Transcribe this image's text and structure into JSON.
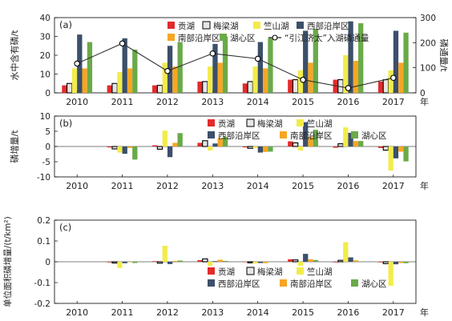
{
  "years": [
    "2010",
    "2011",
    "2012",
    "2013",
    "2014",
    "2015",
    "2016",
    "2017"
  ],
  "year_unit": "年",
  "series_colors": {
    "贡湖": "#e32b2b",
    "梅梁湖": "#e6e6e6",
    "竺山湖": "#f2ec4b",
    "西部沿岸区": "#3c4f6b",
    "南部沿岸区": "#f6a623",
    "湖心区": "#6aaa49",
    "引江济太": "#333333"
  },
  "chart_data": [
    {
      "type": "bar",
      "panel": "(a)",
      "ylabel": "水中含有磷/t",
      "ylabel_right": "磷通量/t",
      "ylim": [
        0,
        40
      ],
      "yticks": [
        0,
        10,
        20,
        30,
        40
      ],
      "ylim_right": [
        0,
        300
      ],
      "yticks_right": [
        0,
        100,
        200,
        300
      ],
      "categories": [
        "2010",
        "2011",
        "2012",
        "2013",
        "2014",
        "2015",
        "2016",
        "2017"
      ],
      "series": [
        {
          "name": "贡湖",
          "values": [
            4,
            4,
            4,
            6,
            5,
            7,
            7,
            6
          ]
        },
        {
          "name": "梅梁湖",
          "values": [
            5,
            5,
            4,
            6,
            6,
            7,
            7,
            7
          ]
        },
        {
          "name": "竺山湖",
          "values": [
            13,
            11,
            16,
            14,
            14,
            12,
            20,
            12
          ]
        },
        {
          "name": "西部沿岸区",
          "values": [
            31,
            29,
            25,
            26,
            27,
            33,
            38,
            33
          ]
        },
        {
          "name": "南部沿岸区",
          "values": [
            13,
            13,
            14,
            16,
            13,
            16,
            17,
            16
          ]
        },
        {
          "name": "湖心区",
          "values": [
            27,
            23,
            27,
            30,
            29,
            34,
            37,
            32
          ]
        }
      ],
      "line": {
        "name": "“引江济太”入湖磷通量",
        "values": [
          117,
          197,
          87,
          157,
          136,
          52,
          19,
          60
        ]
      }
    },
    {
      "type": "bar",
      "panel": "(b)",
      "ylabel": "磷增量/t",
      "ylim": [
        -10,
        10
      ],
      "yticks": [
        -10,
        -5,
        0,
        5,
        10
      ],
      "categories": [
        "2010",
        "2011",
        "2012",
        "2013",
        "2014",
        "2015",
        "2016",
        "2017"
      ],
      "series": [
        {
          "name": "贡湖",
          "values": [
            0,
            -0.3,
            0.4,
            1.2,
            -0.3,
            1.7,
            -0.4,
            -0.5
          ]
        },
        {
          "name": "梅梁湖",
          "values": [
            0,
            -0.8,
            -0.9,
            1.9,
            -0.6,
            1.2,
            0.9,
            -1.2
          ]
        },
        {
          "name": "竺山湖",
          "values": [
            0,
            -2.0,
            5.2,
            -1.3,
            -0.5,
            -1.3,
            6.3,
            -7.9
          ]
        },
        {
          "name": "西部沿岸区",
          "values": [
            0,
            -2.4,
            -3.5,
            1.0,
            -2.0,
            8.0,
            4.5,
            -3.9
          ]
        },
        {
          "name": "南部沿岸区",
          "values": [
            0,
            -0.5,
            1.2,
            2.7,
            -1.8,
            3.2,
            1.8,
            -1.7
          ]
        },
        {
          "name": "湖心区",
          "values": [
            0,
            -4.3,
            4.4,
            3.1,
            -1.7,
            5.5,
            1.8,
            -4.9
          ]
        }
      ]
    },
    {
      "type": "bar",
      "panel": "(c)",
      "ylabel": "单位面积磷增量/(t/km²)",
      "ylim": [
        -0.2,
        0.2
      ],
      "yticks": [
        -0.2,
        -0.1,
        0,
        0.1,
        0.2
      ],
      "categories": [
        "2010",
        "2011",
        "2012",
        "2013",
        "2014",
        "2015",
        "2016",
        "2017"
      ],
      "series": [
        {
          "name": "贡湖",
          "values": [
            0,
            -0.003,
            0.003,
            0.008,
            -0.002,
            0.012,
            -0.003,
            -0.003
          ]
        },
        {
          "name": "梅梁湖",
          "values": [
            0,
            -0.006,
            -0.007,
            0.014,
            -0.005,
            0.009,
            0.007,
            -0.009
          ]
        },
        {
          "name": "竺山湖",
          "values": [
            0,
            -0.03,
            0.077,
            -0.019,
            -0.008,
            -0.019,
            0.094,
            -0.115
          ]
        },
        {
          "name": "西部沿岸区",
          "values": [
            0,
            -0.007,
            -0.011,
            0.003,
            -0.006,
            0.038,
            0.021,
            -0.012
          ]
        },
        {
          "name": "南部沿岸区",
          "values": [
            0,
            -0.002,
            0.004,
            0.01,
            -0.007,
            0.012,
            0.007,
            -0.006
          ]
        },
        {
          "name": "湖心区",
          "values": [
            0,
            -0.006,
            0.006,
            0.004,
            -0.002,
            0.008,
            0.002,
            -0.007
          ]
        }
      ]
    }
  ]
}
